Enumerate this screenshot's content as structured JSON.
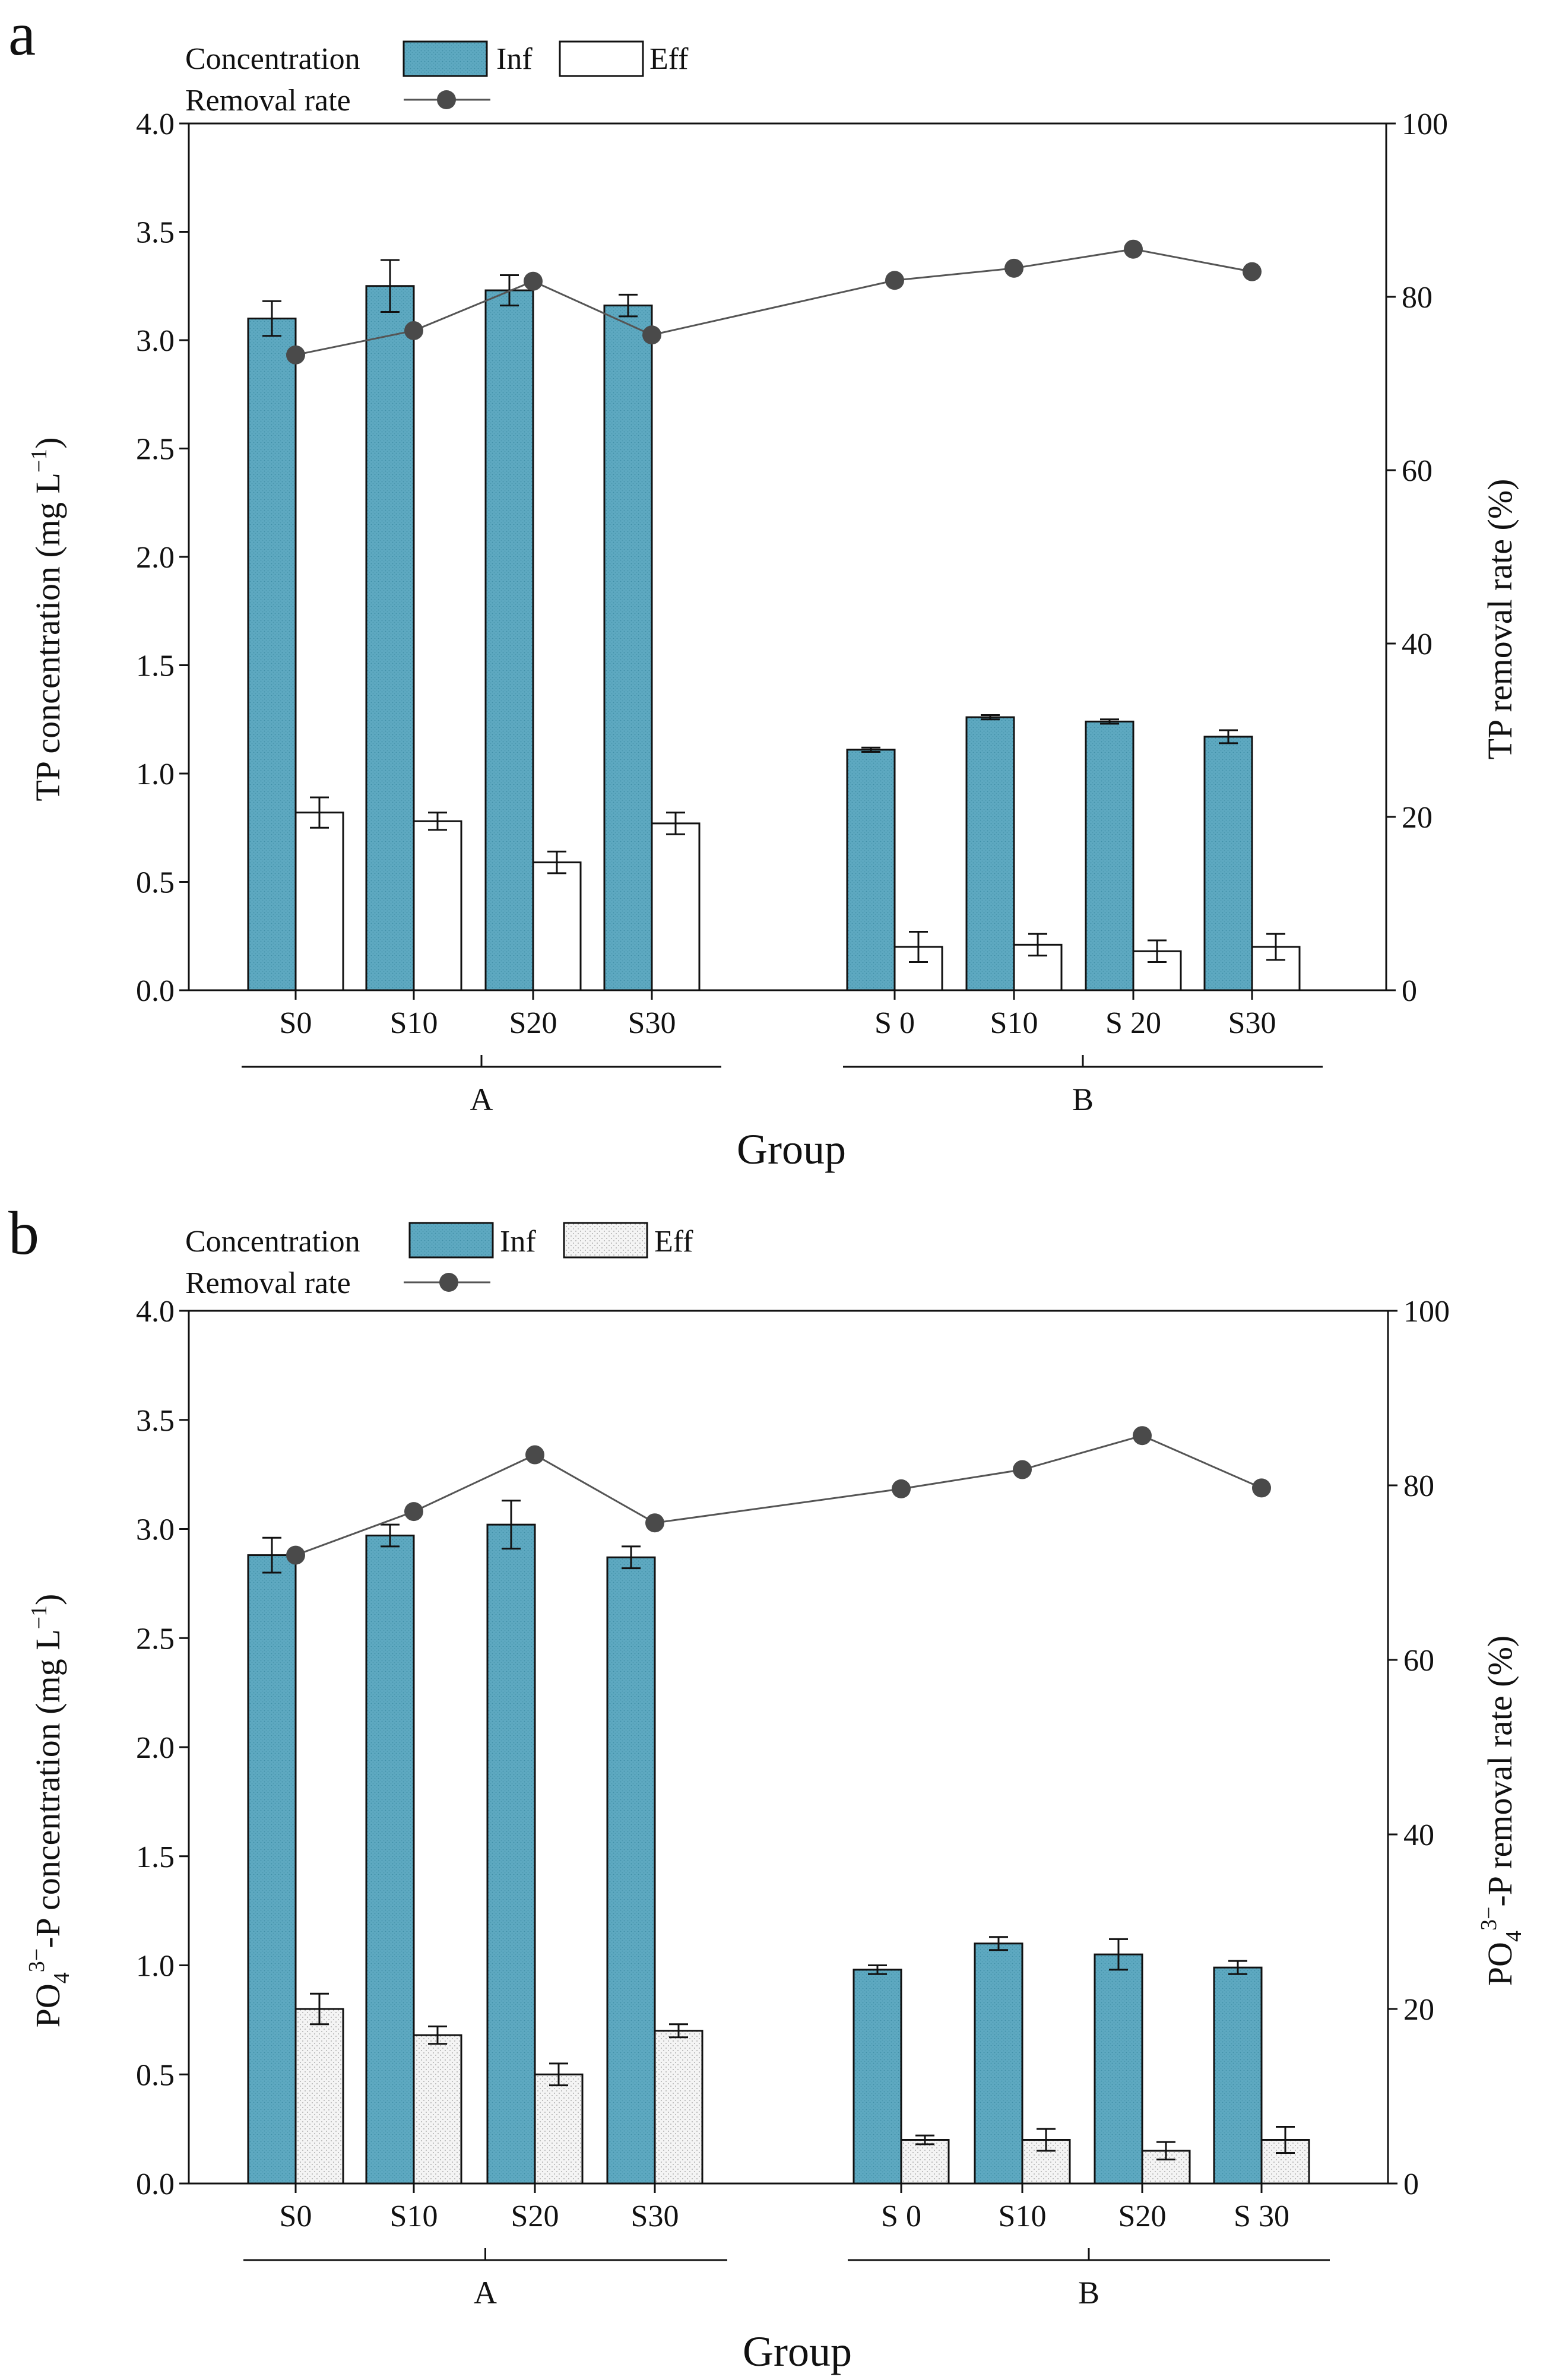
{
  "colors": {
    "inf": "#5ea9c1",
    "eff_a": "#ffffff",
    "eff_b": "#f3f3f3",
    "line": "#555555",
    "marker": "#4a4a4a",
    "axis": "#111111"
  },
  "chart_data": [
    {
      "panel": "a",
      "type": "bar",
      "xlabel": "Group",
      "ylabel_parts": {
        "main": "TP concentration (mg L",
        "sup": "−1",
        "close": ")"
      },
      "ylabel_right": "TP removal rate (%)",
      "ylim": [
        0,
        4.0
      ],
      "yticks": [
        "0.0",
        "0.5",
        "1.0",
        "1.5",
        "2.0",
        "2.5",
        "3.0",
        "3.5",
        "4.0"
      ],
      "y2lim": [
        0,
        100
      ],
      "y2ticks": [
        "0",
        "20",
        "40",
        "60",
        "80",
        "100"
      ],
      "legend": {
        "concentration": "Concentration",
        "inf": "Inf",
        "eff": "Eff",
        "removal": "Removal rate"
      },
      "groups": [
        {
          "name": "A",
          "categories": [
            "S0",
            "S10",
            "S20",
            "S30"
          ],
          "inf": [
            3.1,
            3.25,
            3.23,
            3.16
          ],
          "inf_err": [
            0.08,
            0.12,
            0.07,
            0.05
          ],
          "eff": [
            0.82,
            0.78,
            0.59,
            0.77
          ],
          "eff_err": [
            0.07,
            0.04,
            0.05,
            0.05
          ],
          "removal": [
            73.3,
            76.1,
            81.8,
            75.6
          ]
        },
        {
          "name": "B",
          "categories": [
            "S 0",
            "S10",
            "S 20",
            "S30"
          ],
          "inf": [
            1.11,
            1.26,
            1.24,
            1.17
          ],
          "inf_err": [
            0.01,
            0.01,
            0.01,
            0.03
          ],
          "eff": [
            0.2,
            0.21,
            0.18,
            0.2
          ],
          "eff_err": [
            0.07,
            0.05,
            0.05,
            0.06
          ],
          "removal": [
            81.9,
            83.3,
            85.5,
            82.9
          ]
        }
      ]
    },
    {
      "panel": "b",
      "type": "bar",
      "xlabel": "Group",
      "ylabel_parts": {
        "pre": "PO",
        "sub": "4",
        "sup": "3−",
        "main": "-P concentration (mg L",
        "sup2": "−1",
        "close": ")"
      },
      "ylabel_right_parts": {
        "pre": "PO",
        "sub": "4",
        "sup": "3−",
        "main": "-P removal rate (%)"
      },
      "ylim": [
        0,
        4.0
      ],
      "yticks": [
        "0.0",
        "0.5",
        "1.0",
        "1.5",
        "2.0",
        "2.5",
        "3.0",
        "3.5",
        "4.0"
      ],
      "y2lim": [
        0,
        100
      ],
      "y2ticks": [
        "0",
        "20",
        "40",
        "60",
        "80",
        "100"
      ],
      "legend": {
        "concentration": "Concentration",
        "inf": "Inf",
        "eff": "Eff",
        "removal": "Removal rate"
      },
      "groups": [
        {
          "name": "A",
          "categories": [
            "S0",
            "S10",
            "S20",
            "S30"
          ],
          "inf": [
            2.88,
            2.97,
            3.02,
            2.87
          ],
          "inf_err": [
            0.08,
            0.05,
            0.11,
            0.05
          ],
          "eff": [
            0.8,
            0.68,
            0.5,
            0.7
          ],
          "eff_err": [
            0.07,
            0.04,
            0.05,
            0.03
          ],
          "removal": [
            72.0,
            77.0,
            83.5,
            75.7
          ]
        },
        {
          "name": "B",
          "categories": [
            "S 0",
            "S10",
            "S20",
            "S 30"
          ],
          "inf": [
            0.98,
            1.1,
            1.05,
            0.99
          ],
          "inf_err": [
            0.02,
            0.03,
            0.07,
            0.03
          ],
          "eff": [
            0.2,
            0.2,
            0.15,
            0.2
          ],
          "eff_err": [
            0.02,
            0.05,
            0.04,
            0.06
          ],
          "removal": [
            79.6,
            81.8,
            85.7,
            79.7
          ]
        }
      ]
    }
  ]
}
